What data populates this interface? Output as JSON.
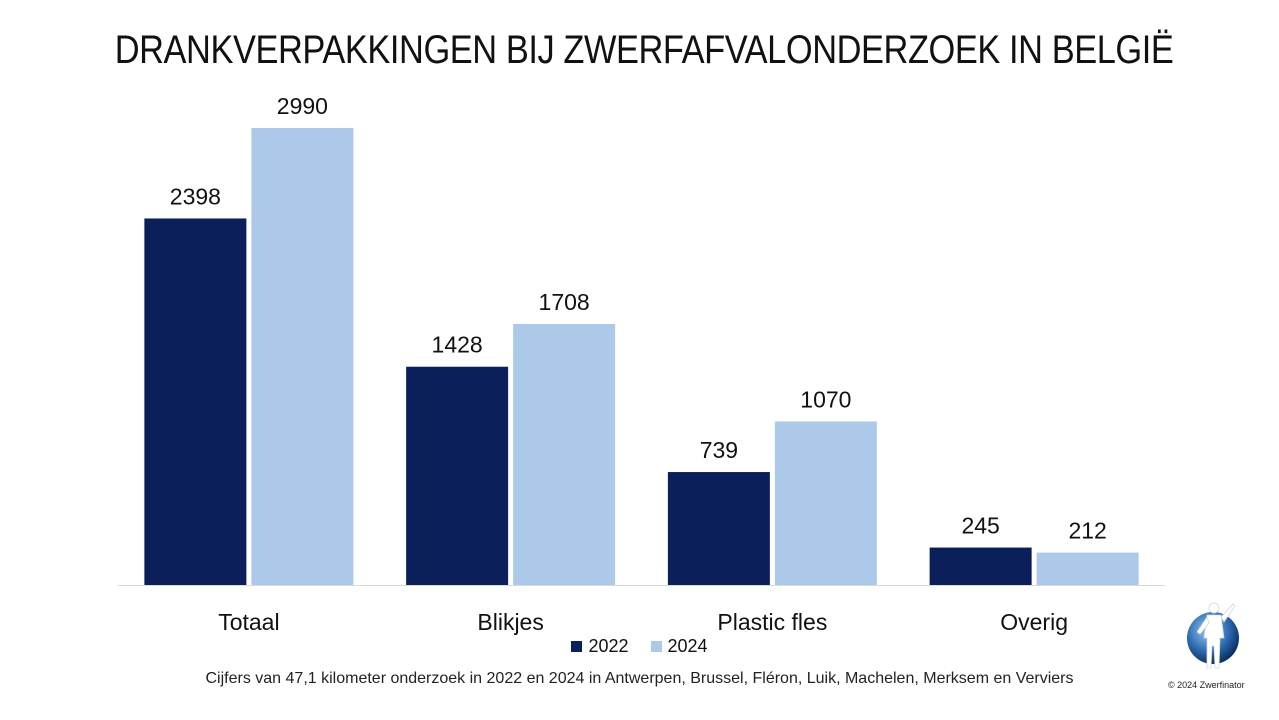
{
  "chart_data": {
    "type": "bar",
    "title": "DRANKVERPAKKINGEN BIJ ZWERFAFVALONDERZOEK IN BELGIË",
    "categories": [
      "Totaal",
      "Blikjes",
      "Plastic fles",
      "Overig"
    ],
    "series": [
      {
        "name": "2022",
        "values": [
          2398,
          1428,
          739,
          245
        ],
        "color": "#0b1f5a"
      },
      {
        "name": "2024",
        "values": [
          2990,
          1708,
          1070,
          212
        ],
        "color": "#adc9e9"
      }
    ],
    "ylim": [
      0,
      3000
    ],
    "grid": false,
    "legend": "bottom",
    "data_labels": true
  },
  "footnote": "Cijfers van 47,1 kilometer onderzoek in  2022 en 2024 in Antwerpen, Brussel, Fléron, Luik, Machelen, Merksem en Verviers",
  "copyright": "© 2024 Zwerfinator"
}
